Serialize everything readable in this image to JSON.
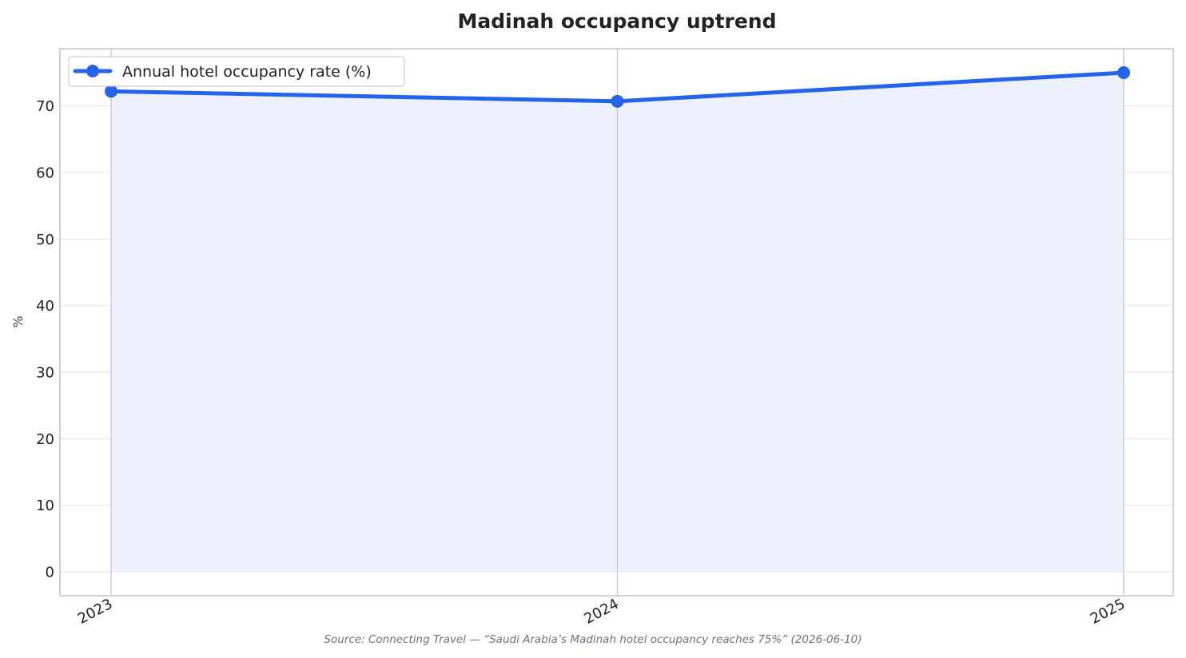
{
  "chart_data": {
    "type": "line",
    "title": "Madinah occupancy uptrend",
    "ylabel": "%",
    "xlabel": "",
    "categories": [
      "2023",
      "2024",
      "2025"
    ],
    "series": [
      {
        "name": "Annual hotel occupancy rate (%)",
        "values": [
          72.2,
          70.7,
          75.0
        ]
      }
    ],
    "ylim": [
      -3.6,
      78.6
    ],
    "yticks": [
      0,
      10,
      20,
      30,
      40,
      50,
      60,
      70
    ],
    "grid": true,
    "fill_under_line": true,
    "legend_position": "top-left",
    "source": "Source: Connecting Travel — “Saudi Arabia’s Madinah hotel occupancy reaches 75%” (2026-06-10)",
    "colors": {
      "line": "#2563eb",
      "fill": "#ecf1fc",
      "grid": "#e5e7eb",
      "vgrid": "#c0c6d4",
      "frame": "#c4c4c4"
    }
  }
}
